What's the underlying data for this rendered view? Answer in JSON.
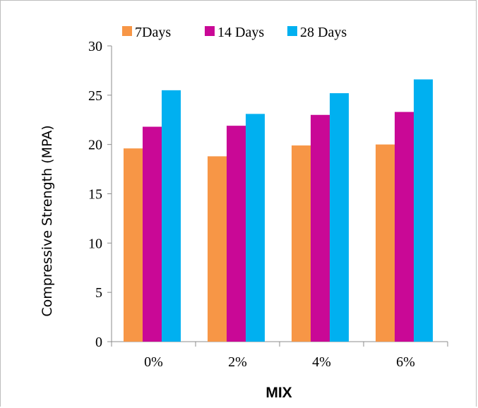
{
  "chart_data": {
    "type": "bar",
    "title": "",
    "xlabel": "MIX",
    "ylabel": "Compressive  Strength (MPA)",
    "categories": [
      "0%",
      "2%",
      "4%",
      "6%"
    ],
    "series": [
      {
        "name": "7Days",
        "color": "#f79646",
        "values": [
          19.6,
          18.8,
          19.9,
          20.0
        ]
      },
      {
        "name": "14 Days",
        "color": "#c90896",
        "values": [
          21.8,
          21.9,
          23.0,
          23.3
        ]
      },
      {
        "name": "28 Days",
        "color": "#00b0f0",
        "values": [
          25.5,
          23.1,
          25.2,
          26.6
        ]
      }
    ],
    "ylim": [
      0,
      30
    ],
    "yticks": [
      "0",
      "5",
      "10",
      "15",
      "20",
      "25",
      "30"
    ],
    "grid": false,
    "legend": "top"
  }
}
